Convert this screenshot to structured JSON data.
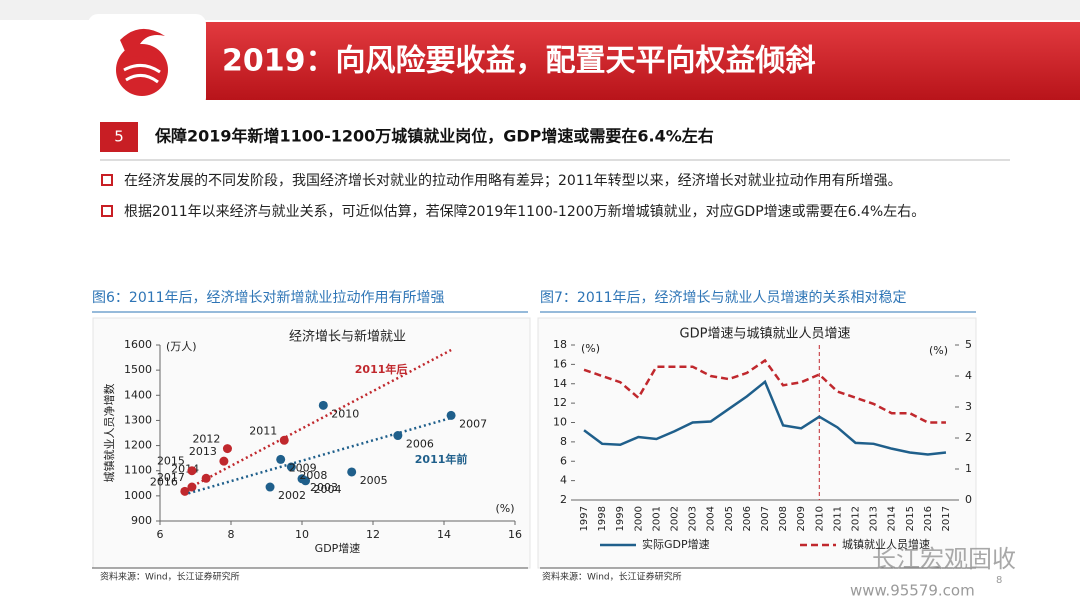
{
  "header": {
    "title": "2019：向风险要收益，配置天平向权益倾斜"
  },
  "section": {
    "number": "5",
    "title": "保障2019年新增1100-1200万城镇就业岗位，GDP增速或需要在6.4%左右"
  },
  "bullets": [
    "在经济发展的不同发阶段，我国经济增长对就业的拉动作用略有差异；2011年转型以来，经济增长对就业拉动作用有所增强。",
    "根据2011年以来经济与就业关系，可近似估算，若保障2019年1100-1200万新增城镇就业，对应GDP增速或需要在6.4%左右。"
  ],
  "chart_data": [
    {
      "type": "scatter",
      "caption": "图6：2011年后，经济增长对新增就业拉动作用有所增强",
      "title": "经济增长与新增就业",
      "source": "资料来源：Wind，长江证券研究所",
      "x_label": "GDP增速",
      "x_unit": "(%)",
      "y_label": "城镇就业人员净增数",
      "y_unit": "(万人)",
      "xlim": [
        6,
        16
      ],
      "xticks": [
        6,
        8,
        10,
        12,
        14,
        16
      ],
      "ylim": [
        900,
        1600
      ],
      "yticks": [
        900,
        1000,
        1100,
        1200,
        1300,
        1400,
        1500,
        1600
      ],
      "series": [
        {
          "name": "2011年后",
          "color": "#c0282d",
          "labels": [
            "2011",
            "2012",
            "2013",
            "2014",
            "2015",
            "2016",
            "2017"
          ],
          "x": [
            9.5,
            7.9,
            7.8,
            7.3,
            6.9,
            6.7,
            6.9
          ],
          "values": [
            1221,
            1188,
            1138,
            1070,
            1100,
            1018,
            1035
          ],
          "trend_x": [
            6.8,
            14.2
          ],
          "trend_y": [
            1030,
            1580
          ]
        },
        {
          "name": "2011年前",
          "color": "#1f5f8b",
          "labels": [
            "2002",
            "2003",
            "2004",
            "2005",
            "2006",
            "2007",
            "2008",
            "2009",
            "2010"
          ],
          "x": [
            9.1,
            10.0,
            10.1,
            11.4,
            12.7,
            14.2,
            9.7,
            9.4,
            10.6
          ],
          "values": [
            1035,
            1068,
            1060,
            1095,
            1240,
            1320,
            1115,
            1145,
            1360
          ],
          "trend_x": [
            6.8,
            14.2
          ],
          "trend_y": [
            1010,
            1310
          ]
        }
      ]
    },
    {
      "type": "line",
      "caption": "图7：2011年后，经济增长与就业人员增速的关系相对稳定",
      "title": "GDP增速与城镇就业人员增速",
      "source": "资料来源：Wind，长江证券研究所",
      "y_unit": "(%)",
      "y2_unit": "(%)",
      "categories": [
        "1997",
        "1998",
        "1999",
        "2000",
        "2001",
        "2002",
        "2003",
        "2004",
        "2005",
        "2006",
        "2007",
        "2008",
        "2009",
        "2010",
        "2011",
        "2012",
        "2013",
        "2014",
        "2015",
        "2016",
        "2017"
      ],
      "ylim": [
        2,
        18
      ],
      "yticks": [
        2,
        4,
        6,
        8,
        10,
        12,
        14,
        16,
        18
      ],
      "y2lim": [
        0,
        5
      ],
      "y2ticks": [
        0,
        1,
        2,
        3,
        4,
        5
      ],
      "vline": "2010",
      "series": [
        {
          "name": "实际GDP增速",
          "color": "#1f5f8b",
          "style": "solid",
          "values": [
            9.2,
            7.8,
            7.7,
            8.5,
            8.3,
            9.1,
            10.0,
            10.1,
            11.4,
            12.7,
            14.2,
            9.7,
            9.4,
            10.6,
            9.5,
            7.9,
            7.8,
            7.3,
            6.9,
            6.7,
            6.9
          ]
        },
        {
          "name": "城镇就业人员增速",
          "color": "#c0282d",
          "style": "dashed",
          "axis": "y2",
          "values": [
            4.2,
            4.0,
            3.8,
            3.3,
            4.3,
            4.3,
            4.3,
            4.0,
            3.9,
            4.1,
            4.5,
            3.7,
            3.8,
            4.05,
            3.5,
            3.3,
            3.1,
            2.8,
            2.8,
            2.5,
            2.5
          ]
        }
      ]
    }
  ],
  "footer": {
    "watermark": "长江宏观固收",
    "site": "www.95579.com",
    "page": "8"
  }
}
